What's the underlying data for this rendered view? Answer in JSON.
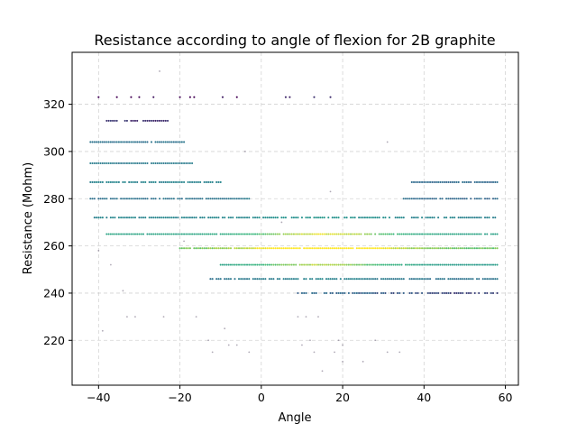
{
  "chart_data": {
    "type": "scatter",
    "title": "Resistance according to angle of flexion for 2B graphite",
    "xlabel": "Angle",
    "ylabel": "Resistance (Mohm)",
    "xlim": [
      -46.5,
      63.2
    ],
    "ylim": [
      201,
      342
    ],
    "xticks": [
      -40,
      -20,
      0,
      20,
      40,
      60
    ],
    "yticks": [
      220,
      240,
      260,
      280,
      300,
      320
    ],
    "grid": true,
    "colormap": [
      "#440154",
      "#31688e",
      "#21918c",
      "#35b779",
      "#fde725"
    ],
    "bands": [
      {
        "y": 323,
        "x": [
          -40,
          29
        ],
        "density": 0.12,
        "level": 0.05
      },
      {
        "y": 313,
        "x": [
          -38,
          -23
        ],
        "density": 0.85,
        "level": 0.15
      },
      {
        "y": 304,
        "x": [
          -42,
          -19
        ],
        "density": 0.95,
        "level": 0.35
      },
      {
        "y": 295,
        "x": [
          -42,
          -17
        ],
        "density": 0.95,
        "level": 0.4
      },
      {
        "y": 287,
        "x": [
          -42,
          -10
        ],
        "density": 0.9,
        "level": 0.45
      },
      {
        "y": 287,
        "x": [
          37,
          58
        ],
        "density": 0.85,
        "level": 0.3
      },
      {
        "y": 280,
        "x": [
          -42,
          -3
        ],
        "density": 0.9,
        "level": 0.35
      },
      {
        "y": 280,
        "x": [
          35,
          58
        ],
        "density": 0.85,
        "level": 0.3
      },
      {
        "y": 272,
        "x": [
          -42,
          58
        ],
        "density": 0.75,
        "level": 0.45
      },
      {
        "y": 265,
        "x": [
          -38,
          58
        ],
        "density": 0.95,
        "level": 0.65
      },
      {
        "y": 259,
        "x": [
          -20,
          58
        ],
        "density": 0.98,
        "level": 0.85
      },
      {
        "y": 252,
        "x": [
          -10,
          58
        ],
        "density": 0.97,
        "level": 0.6
      },
      {
        "y": 246,
        "x": [
          -13,
          58
        ],
        "density": 0.8,
        "level": 0.35
      },
      {
        "y": 240,
        "x": [
          8,
          58
        ],
        "density": 0.7,
        "level": 0.2
      }
    ],
    "sparse_points": [
      [
        -25,
        334
      ],
      [
        -40,
        258
      ],
      [
        -37,
        252
      ],
      [
        -34,
        241
      ],
      [
        -33,
        230
      ],
      [
        -31,
        230
      ],
      [
        -24,
        230
      ],
      [
        -16,
        230
      ],
      [
        -13,
        220
      ],
      [
        -9,
        225
      ],
      [
        -8,
        218
      ],
      [
        -6,
        218
      ],
      [
        -12,
        215
      ],
      [
        -3,
        215
      ],
      [
        9,
        230
      ],
      [
        11,
        230
      ],
      [
        14,
        230
      ],
      [
        10,
        218
      ],
      [
        12,
        220
      ],
      [
        13,
        215
      ],
      [
        15,
        207
      ],
      [
        18,
        215
      ],
      [
        19,
        220
      ],
      [
        20,
        218
      ],
      [
        20,
        211
      ],
      [
        25,
        211
      ],
      [
        28,
        220
      ],
      [
        31,
        215
      ],
      [
        34,
        215
      ],
      [
        5,
        270
      ],
      [
        -4,
        300
      ],
      [
        31,
        304
      ],
      [
        -39,
        224
      ],
      [
        -19,
        262
      ],
      [
        17,
        283
      ]
    ]
  }
}
